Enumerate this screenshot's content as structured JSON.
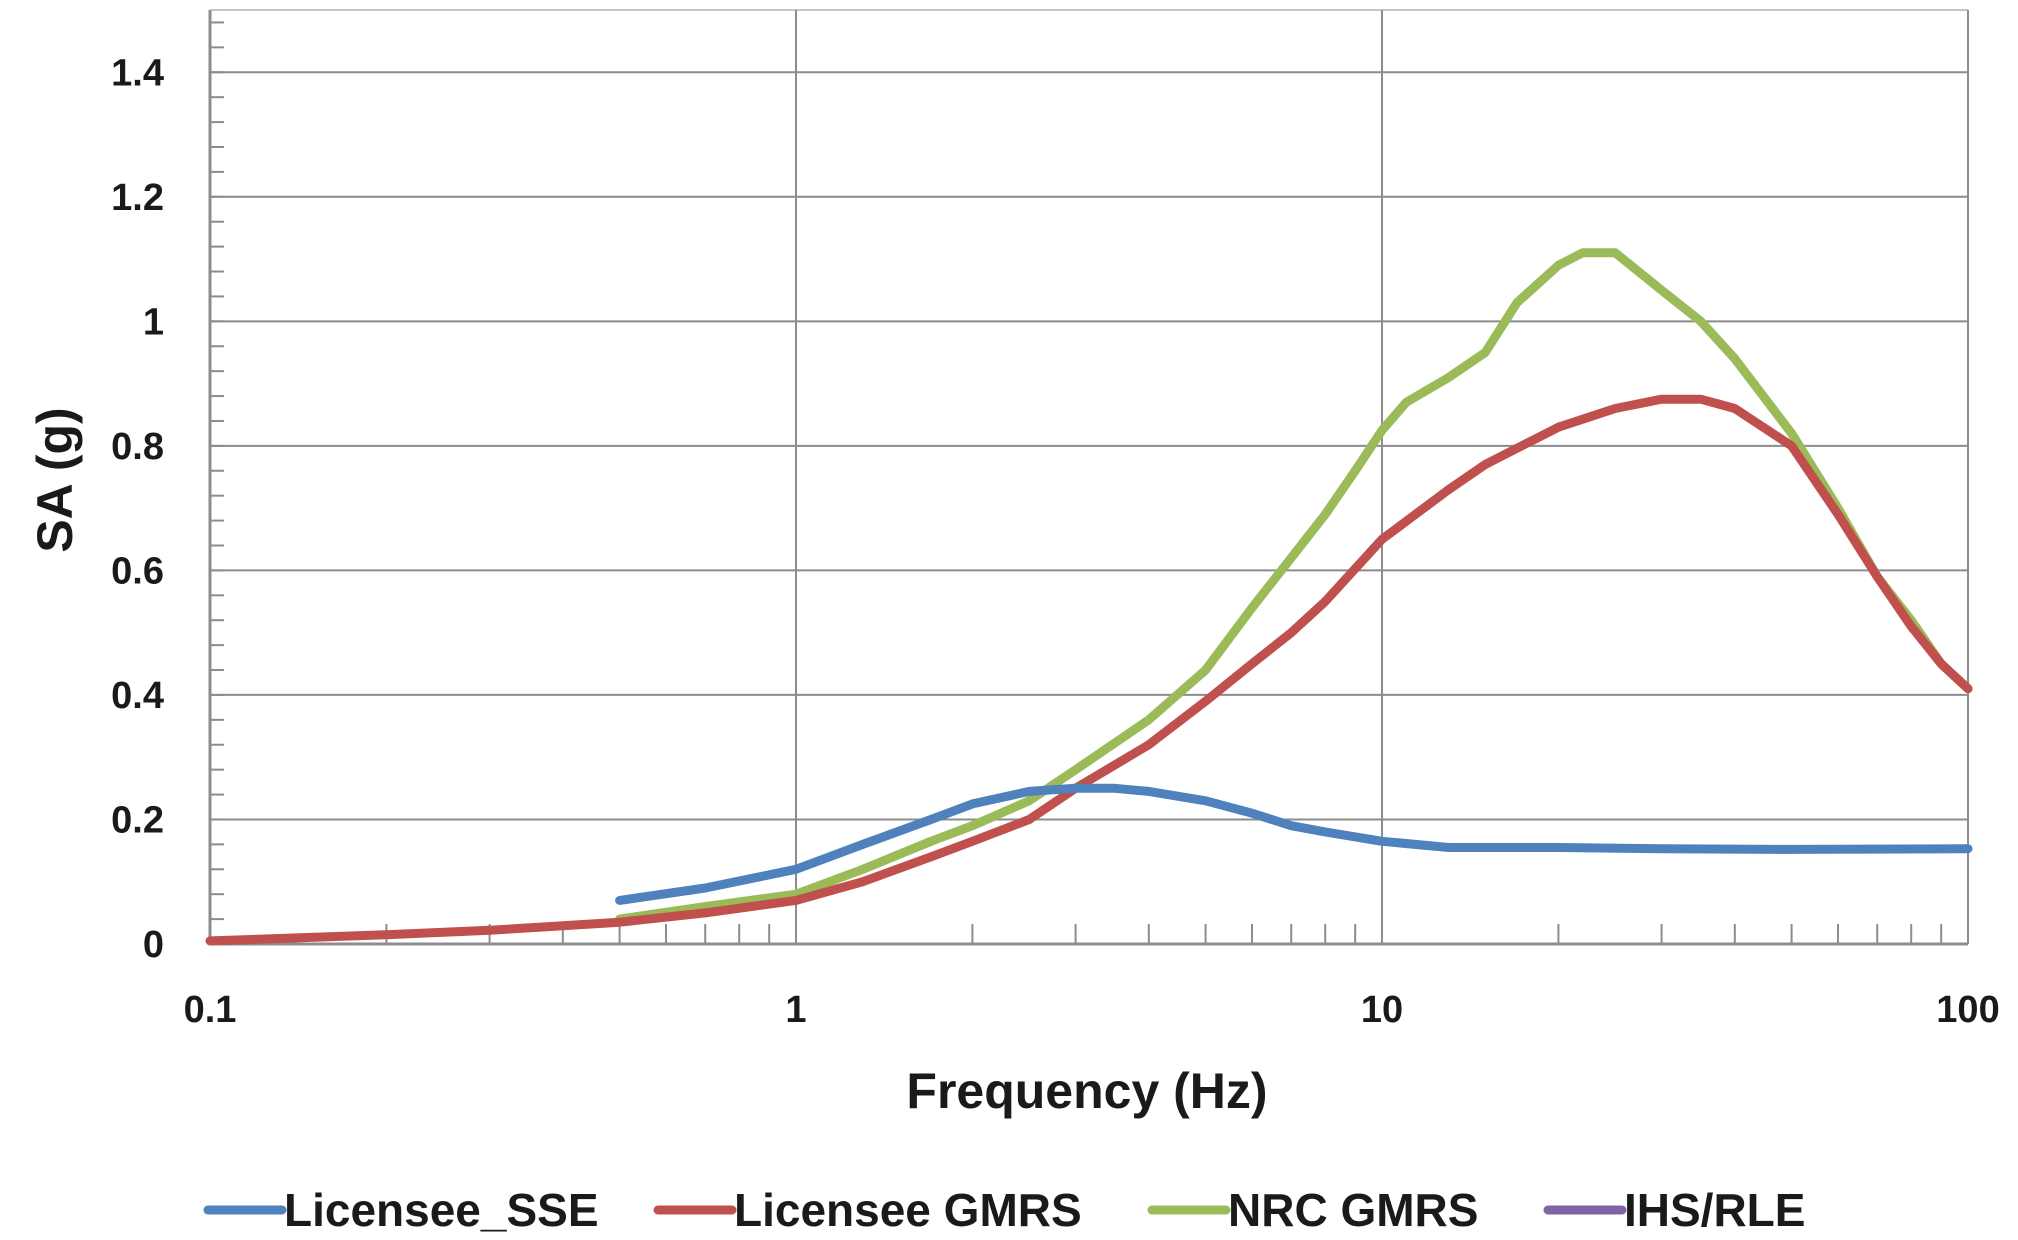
{
  "chart_data": {
    "type": "line",
    "xscale": "log",
    "xlabel": "Frequency (Hz)",
    "ylabel": "SA (g)",
    "xlim": [
      0.1,
      100
    ],
    "ylim": [
      0,
      1.5
    ],
    "xticks": [
      "0.1",
      "1",
      "10",
      "100"
    ],
    "xtick_values": [
      0.1,
      1,
      10,
      100
    ],
    "yticks": [
      "0",
      "0.2",
      "0.4",
      "0.6",
      "0.8",
      "1",
      "1.2",
      "1.4"
    ],
    "ytick_values": [
      0,
      0.2,
      0.4,
      0.6,
      0.8,
      1.0,
      1.2,
      1.4
    ],
    "grid": true,
    "legend_position": "bottom",
    "series": [
      {
        "name": "Licensee_SSE",
        "color": "#4f81bd",
        "x": [
          0.5,
          0.7,
          1.0,
          1.3,
          1.7,
          2.0,
          2.5,
          3.0,
          3.5,
          4.0,
          5.0,
          6.0,
          7.0,
          8.0,
          10,
          13,
          15,
          20,
          30,
          50,
          100
        ],
        "y": [
          0.07,
          0.09,
          0.12,
          0.16,
          0.2,
          0.225,
          0.245,
          0.25,
          0.25,
          0.245,
          0.23,
          0.21,
          0.19,
          0.18,
          0.165,
          0.155,
          0.155,
          0.155,
          0.153,
          0.152,
          0.153
        ]
      },
      {
        "name": "Licensee GMRS",
        "color": "#c0504d",
        "x": [
          0.1,
          0.2,
          0.3,
          0.5,
          0.7,
          1.0,
          1.3,
          1.7,
          2.0,
          2.5,
          3.0,
          4.0,
          5.0,
          6.0,
          7.0,
          8.0,
          10,
          13,
          15,
          20,
          25,
          30,
          35,
          40,
          50,
          60,
          70,
          80,
          90,
          100
        ],
        "y": [
          0.005,
          0.015,
          0.022,
          0.035,
          0.05,
          0.07,
          0.1,
          0.14,
          0.165,
          0.2,
          0.25,
          0.32,
          0.39,
          0.45,
          0.5,
          0.55,
          0.65,
          0.73,
          0.77,
          0.83,
          0.86,
          0.875,
          0.875,
          0.86,
          0.8,
          0.69,
          0.59,
          0.51,
          0.45,
          0.41
        ]
      },
      {
        "name": "NRC GMRS",
        "color": "#9bbb59",
        "x": [
          0.5,
          0.7,
          1.0,
          1.3,
          1.7,
          2.0,
          2.5,
          3.0,
          4.0,
          5.0,
          6.0,
          7.0,
          8.0,
          9.0,
          10,
          11,
          13,
          15,
          17,
          20,
          22,
          25,
          30,
          35,
          40,
          50,
          60,
          70,
          80,
          90,
          100
        ],
        "y": [
          0.04,
          0.06,
          0.08,
          0.12,
          0.165,
          0.19,
          0.23,
          0.28,
          0.36,
          0.44,
          0.54,
          0.62,
          0.69,
          0.76,
          0.825,
          0.87,
          0.91,
          0.95,
          1.03,
          1.09,
          1.11,
          1.11,
          1.05,
          1.0,
          0.94,
          0.82,
          0.7,
          0.59,
          0.52,
          0.45,
          0.41
        ]
      },
      {
        "name": "IHS/RLE",
        "color": "#8064a2",
        "x": [],
        "y": []
      }
    ]
  }
}
